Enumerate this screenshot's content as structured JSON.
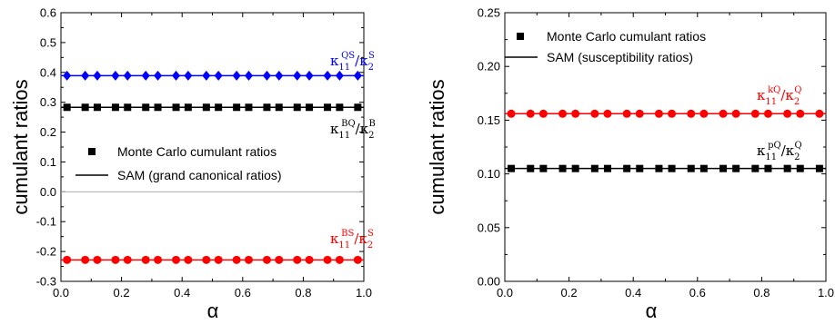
{
  "chart_data": [
    {
      "type": "scatter",
      "xlabel": "α",
      "ylabel": "cumulant ratios",
      "xlim": [
        0.0,
        1.0
      ],
      "ylim": [
        -0.3,
        0.6
      ],
      "xticks": [
        "0.0",
        "0.2",
        "0.4",
        "0.6",
        "0.8",
        "1.0"
      ],
      "yticks": [
        "-0.3",
        "-0.2",
        "-0.1",
        "0.0",
        "0.1",
        "0.2",
        "0.3",
        "0.4",
        "0.5",
        "0.6"
      ],
      "zero_line": true,
      "legend": {
        "placement": "center-left",
        "marker_label": "Monte Carlo cumulant ratios",
        "line_label": "SAM (grand canonical ratios)"
      },
      "x": [
        0.02,
        0.08,
        0.12,
        0.18,
        0.22,
        0.28,
        0.32,
        0.38,
        0.42,
        0.48,
        0.52,
        0.58,
        0.62,
        0.68,
        0.72,
        0.78,
        0.82,
        0.88,
        0.92,
        0.98
      ],
      "series": [
        {
          "marker": "diamond",
          "color": "#0000ff",
          "line_value": 0.389,
          "values": [
            0.389,
            0.389,
            0.389,
            0.389,
            0.389,
            0.389,
            0.389,
            0.389,
            0.389,
            0.389,
            0.389,
            0.389,
            0.389,
            0.389,
            0.389,
            0.389,
            0.389,
            0.389,
            0.389,
            0.389
          ],
          "label_main": "κ",
          "label_sub": "11",
          "label_sup1": "QS",
          "label_div": "/κ",
          "label_sub2": "2",
          "label_sup2": "S"
        },
        {
          "marker": "square",
          "color": "#000000",
          "line_value": 0.283,
          "values": [
            0.283,
            0.283,
            0.283,
            0.283,
            0.283,
            0.283,
            0.283,
            0.283,
            0.283,
            0.283,
            0.283,
            0.283,
            0.283,
            0.283,
            0.283,
            0.283,
            0.283,
            0.283,
            0.283,
            0.283
          ],
          "label_main": "κ",
          "label_sub": "11",
          "label_sup1": "BQ",
          "label_div": "/κ",
          "label_sub2": "2",
          "label_sup2": "B"
        },
        {
          "marker": "circle",
          "color": "#ff0000",
          "line_value": -0.228,
          "values": [
            -0.228,
            -0.228,
            -0.228,
            -0.228,
            -0.228,
            -0.228,
            -0.228,
            -0.228,
            -0.228,
            -0.228,
            -0.228,
            -0.228,
            -0.228,
            -0.228,
            -0.228,
            -0.228,
            -0.228,
            -0.228,
            -0.228,
            -0.228
          ],
          "label_main": "κ",
          "label_sub": "11",
          "label_sup1": "BS",
          "label_div": "/κ",
          "label_sub2": "2",
          "label_sup2": "S"
        }
      ]
    },
    {
      "type": "scatter",
      "xlabel": "α",
      "ylabel": "cumulant ratios",
      "xlim": [
        0.0,
        1.0
      ],
      "ylim": [
        0.0,
        0.25
      ],
      "xticks": [
        "0.0",
        "0.2",
        "0.4",
        "0.6",
        "0.8",
        "1.0"
      ],
      "yticks": [
        "0.00",
        "0.05",
        "0.10",
        "0.15",
        "0.20",
        "0.25"
      ],
      "zero_line": false,
      "legend": {
        "placement": "top-left",
        "marker_label": "Monte Carlo cumulant ratios",
        "line_label": "SAM (susceptibility ratios)"
      },
      "x": [
        0.02,
        0.08,
        0.12,
        0.18,
        0.22,
        0.28,
        0.32,
        0.38,
        0.42,
        0.48,
        0.52,
        0.58,
        0.62,
        0.68,
        0.72,
        0.78,
        0.82,
        0.88,
        0.92,
        0.98
      ],
      "series": [
        {
          "marker": "circle",
          "color": "#ff0000",
          "line_value": 0.156,
          "values": [
            0.156,
            0.156,
            0.156,
            0.156,
            0.156,
            0.156,
            0.156,
            0.156,
            0.156,
            0.156,
            0.156,
            0.156,
            0.156,
            0.156,
            0.156,
            0.156,
            0.156,
            0.156,
            0.156,
            0.156
          ],
          "label_main": "κ",
          "label_sub": "11",
          "label_sup1": "kQ",
          "label_div": "/κ",
          "label_sub2": "2",
          "label_sup2": "Q"
        },
        {
          "marker": "square",
          "color": "#000000",
          "line_value": 0.105,
          "values": [
            0.105,
            0.105,
            0.105,
            0.105,
            0.105,
            0.105,
            0.105,
            0.105,
            0.105,
            0.105,
            0.105,
            0.105,
            0.105,
            0.105,
            0.105,
            0.105,
            0.105,
            0.105,
            0.105,
            0.105
          ],
          "label_main": "κ",
          "label_sub": "11",
          "label_sup1": "pQ",
          "label_div": "/κ",
          "label_sub2": "2",
          "label_sup2": "Q"
        }
      ]
    }
  ]
}
